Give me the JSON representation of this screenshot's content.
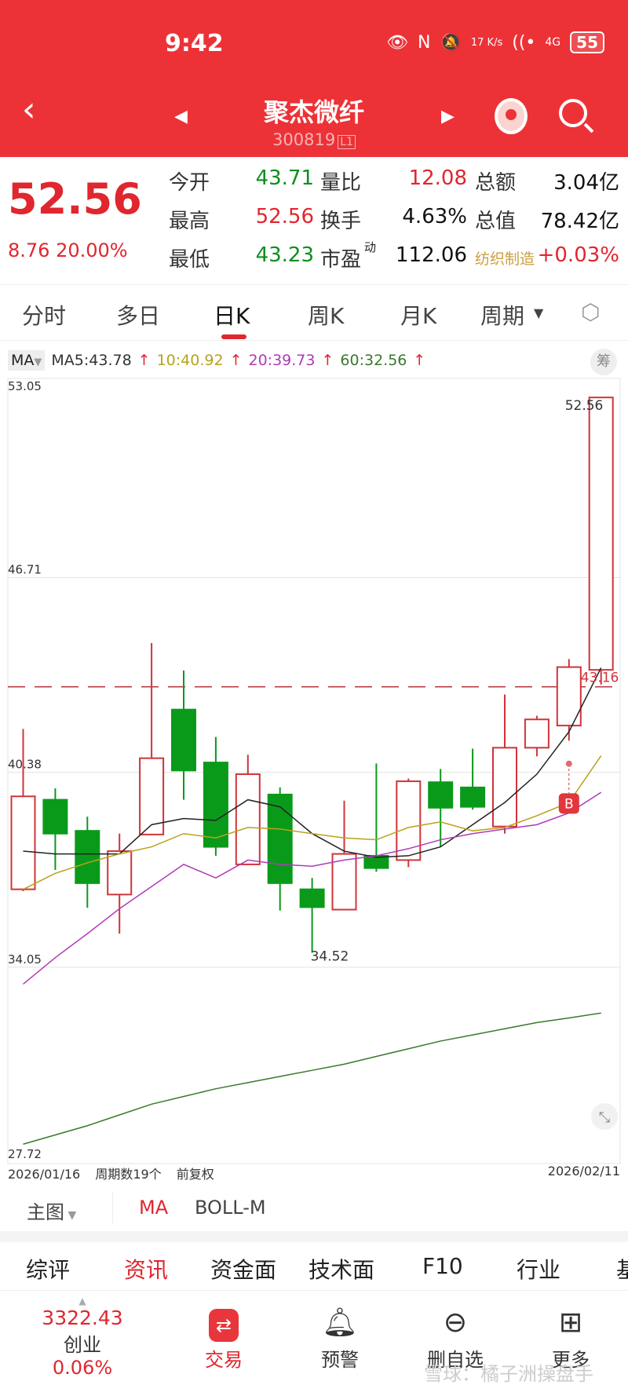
{
  "status": {
    "time": "9:42",
    "net_speed": "17 K/s",
    "signal": "4G",
    "battery": "55"
  },
  "header": {
    "title": "聚杰微纤",
    "code": "300819",
    "level": "L1",
    "colors": {
      "bg": "#ec3237"
    }
  },
  "quote": {
    "price": "52.56",
    "change": "8.76 20.00%",
    "rows": [
      [
        {
          "label": "今开",
          "value": "43.71",
          "color": "green"
        },
        {
          "label": "量比",
          "value": "12.08",
          "color": "red"
        },
        {
          "label": "总额",
          "value": "3.04亿",
          "color": "blk"
        }
      ],
      [
        {
          "label": "最高",
          "value": "52.56",
          "color": "red"
        },
        {
          "label": "换手",
          "value": "4.63%",
          "color": "blk"
        },
        {
          "label": "总值",
          "value": "78.42亿",
          "color": "blk"
        }
      ],
      [
        {
          "label": "最低",
          "value": "43.23",
          "color": "green"
        },
        {
          "label": "市盈",
          "sup": "动",
          "value": "112.06",
          "color": "blk"
        },
        {
          "label": "纺织制造",
          "value": "+0.03%",
          "color": "red"
        }
      ]
    ]
  },
  "period_tabs": [
    "分时",
    "多日",
    "日K",
    "周K",
    "月K",
    "周期"
  ],
  "active_period": "日K",
  "legend": {
    "selector": "MA",
    "ma5": "MA5:43.78",
    "ma10": "10:40.92",
    "ma20": "20:39.73",
    "ma60": "60:32.56",
    "chips_label": "筹"
  },
  "chart_data": {
    "type": "candlestick",
    "y_ticks": [
      "53.05",
      "46.71",
      "40.38",
      "34.05",
      "27.72"
    ],
    "ylim": [
      27.72,
      53.05
    ],
    "max_label": "52.56",
    "min_label": "34.52",
    "ref_line_label": "43.16",
    "ref_line": 43.16,
    "buy_marker": {
      "label": "B",
      "index": 17
    },
    "candles": [
      {
        "o": 36.58,
        "h": 41.79,
        "l": 36.52,
        "c": 39.6
      },
      {
        "o": 39.49,
        "h": 39.86,
        "l": 37.21,
        "c": 38.39
      },
      {
        "o": 38.48,
        "h": 38.94,
        "l": 35.98,
        "c": 36.78
      },
      {
        "o": 36.41,
        "h": 38.39,
        "l": 35.14,
        "c": 37.82
      },
      {
        "o": 38.36,
        "h": 44.58,
        "l": 38.36,
        "c": 40.84
      },
      {
        "o": 42.42,
        "h": 43.69,
        "l": 39.49,
        "c": 40.44
      },
      {
        "o": 40.7,
        "h": 41.53,
        "l": 37.67,
        "c": 37.96
      },
      {
        "o": 37.39,
        "h": 40.95,
        "l": 37.39,
        "c": 40.32
      },
      {
        "o": 39.66,
        "h": 39.89,
        "l": 35.89,
        "c": 36.78
      },
      {
        "o": 36.58,
        "h": 36.95,
        "l": 34.52,
        "c": 36.0
      },
      {
        "o": 35.92,
        "h": 39.46,
        "l": 35.92,
        "c": 37.73
      },
      {
        "o": 37.67,
        "h": 40.67,
        "l": 37.15,
        "c": 37.27
      },
      {
        "o": 37.53,
        "h": 40.18,
        "l": 37.3,
        "c": 40.09
      },
      {
        "o": 40.06,
        "h": 40.49,
        "l": 37.96,
        "c": 39.23
      },
      {
        "o": 39.89,
        "h": 41.15,
        "l": 39.17,
        "c": 39.26
      },
      {
        "o": 38.62,
        "h": 42.91,
        "l": 38.39,
        "c": 41.18
      },
      {
        "o": 41.18,
        "h": 42.22,
        "l": 40.9,
        "c": 42.1
      },
      {
        "o": 41.9,
        "h": 44.06,
        "l": 41.41,
        "c": 43.8
      },
      {
        "o": 43.71,
        "h": 52.56,
        "l": 43.23,
        "c": 52.56
      }
    ],
    "series": [
      {
        "name": "MA5",
        "color": "#222222",
        "values": [
          37.82,
          37.73,
          37.73,
          37.73,
          38.68,
          38.88,
          38.82,
          39.49,
          39.26,
          38.39,
          37.82,
          37.62,
          37.67,
          37.96,
          38.68,
          39.4,
          40.32,
          41.7,
          43.78
        ]
      },
      {
        "name": "MA10",
        "color": "#b8a21a",
        "values": [
          36.58,
          37.1,
          37.44,
          37.73,
          37.96,
          38.39,
          38.25,
          38.59,
          38.54,
          38.39,
          38.25,
          38.19,
          38.59,
          38.77,
          38.48,
          38.59,
          38.97,
          39.4,
          40.92
        ]
      },
      {
        "name": "MA20",
        "color": "#b03ab8",
        "values": [
          33.5,
          34.36,
          35.14,
          35.95,
          36.67,
          37.39,
          36.95,
          37.53,
          37.39,
          37.33,
          37.53,
          37.67,
          37.9,
          38.19,
          38.39,
          38.54,
          38.68,
          39.06,
          39.73
        ]
      },
      {
        "name": "MA60",
        "color": "#3a7a2a",
        "values": [
          28.3,
          28.6,
          28.9,
          29.25,
          29.6,
          29.85,
          30.1,
          30.3,
          30.5,
          30.7,
          30.9,
          31.15,
          31.4,
          31.65,
          31.85,
          32.05,
          32.25,
          32.4,
          32.56
        ]
      }
    ],
    "colors": {
      "up": "#d0343a",
      "down": "#0a9a1a"
    }
  },
  "chart_footer": {
    "start": "2026/01/16",
    "count": "周期数19个",
    "adjust": "前复权",
    "end": "2026/02/11"
  },
  "main_row": {
    "selector": "主图",
    "ma": "MA",
    "boll": "BOLL-M"
  },
  "info_tabs": [
    "综评",
    "资讯",
    "资金面",
    "技术面",
    "F10",
    "行业",
    "基"
  ],
  "bottom_nav": {
    "index_value": "3322.43",
    "index_name": "创业",
    "index_change": "0.06%",
    "trade": "交易",
    "alert": "预警",
    "remove": "删自选",
    "more": "更多"
  },
  "watermark": "雪球：橘子洲操盘手"
}
